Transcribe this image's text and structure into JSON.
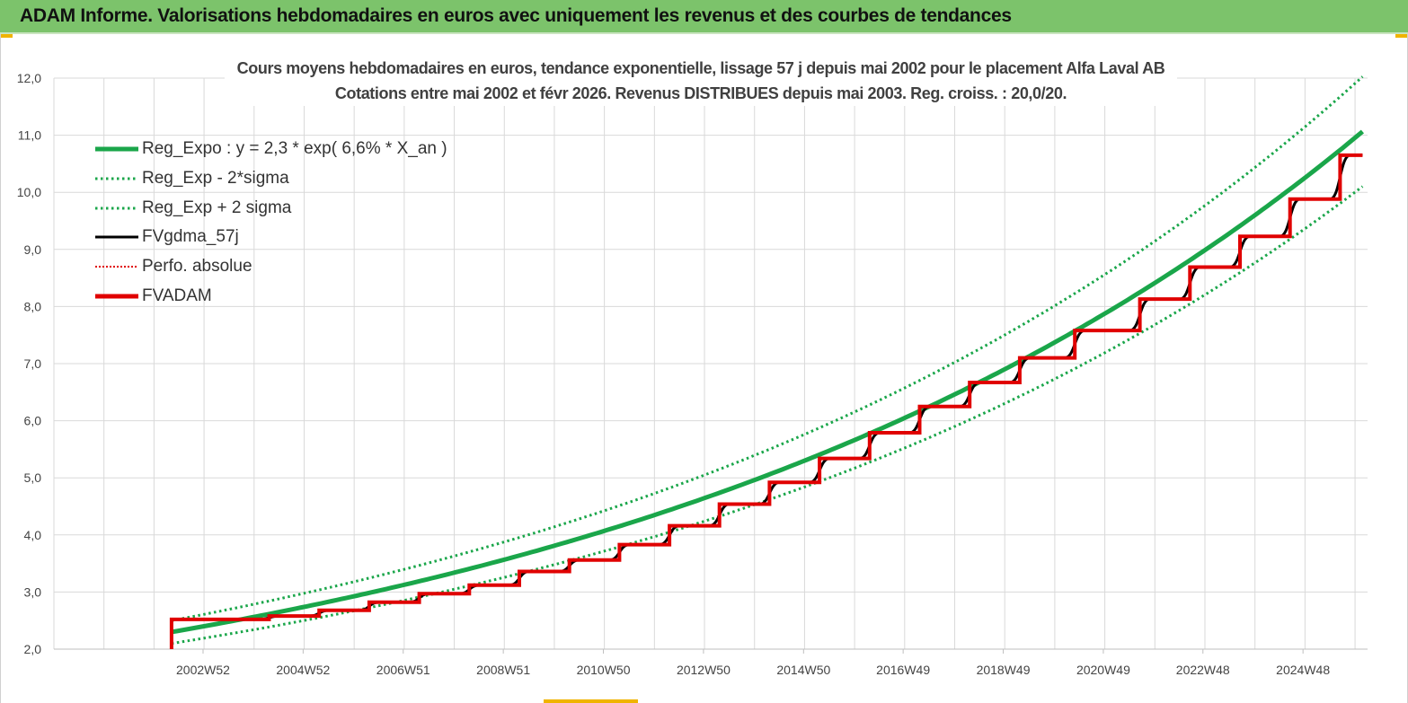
{
  "header": {
    "title": "ADAM Informe. Valorisations hebdomadaires en euros avec uniquement les revenus et des courbes de tendances"
  },
  "chart_data": {
    "type": "line",
    "title_line1": "Cours moyens hebdomadaires en euros, tendance exponentielle, lissage 57 j depuis mai 2002 pour le placement Alfa Laval AB",
    "title_line2": "Cotations entre mai 2002 et févr 2026. Revenus DISTRIBUES depuis mai 2003. Reg. croiss. : 20,0/20.",
    "ylim": [
      2.0,
      12.0
    ],
    "y_ticks": [
      "2,0",
      "3,0",
      "4,0",
      "5,0",
      "6,0",
      "7,0",
      "8,0",
      "9,0",
      "10,0",
      "11,0",
      "12,0"
    ],
    "y_tick_values": [
      2,
      3,
      4,
      5,
      6,
      7,
      8,
      9,
      10,
      11,
      12
    ],
    "x_ticks": [
      "2002W52",
      "2004W52",
      "2006W51",
      "2008W51",
      "2010W50",
      "2012W50",
      "2014W50",
      "2016W49",
      "2018W49",
      "2020W49",
      "2022W48",
      "2024W48"
    ],
    "x_tick_years": [
      2002.98,
      2004.98,
      2006.98,
      2008.98,
      2010.98,
      2012.98,
      2014.98,
      2016.97,
      2018.97,
      2020.97,
      2022.96,
      2024.96
    ],
    "xlim": [
      2000.0,
      2026.25
    ],
    "x_start": 2002.35,
    "x_end": 2026.15,
    "grid": true,
    "legend_position": "top-left",
    "colors": {
      "reg_expo": "#1aa64a",
      "sigma": "#1aa64a",
      "fvgdma": "#000000",
      "perfo": "#e00000",
      "fvadam": "#e00000",
      "grid": "#d9d9d9",
      "axis_text": "#444444"
    },
    "series": [
      {
        "name": "Reg_Expo : y = 2,3 * exp( 6,6% *  X_an )",
        "key": "reg_expo",
        "style": "solid-thick",
        "base": 2.3,
        "rate": 0.066
      },
      {
        "name": "Reg_Exp - 2*sigma",
        "key": "reg_minus",
        "style": "dotted",
        "base": 2.1,
        "rate": 0.066
      },
      {
        "name": "Reg_Exp + 2 sigma",
        "key": "reg_plus",
        "style": "dotted",
        "base": 2.5,
        "rate": 0.066
      },
      {
        "name": "FVgdma_57j",
        "key": "fvgdma",
        "style": "solid"
      },
      {
        "name": "Perfo. absolue",
        "key": "perfo",
        "style": "dotted-red"
      },
      {
        "name": "FVADAM",
        "key": "fvadam",
        "style": "step-thick",
        "steps": [
          {
            "x": 2002.35,
            "y": 2.52
          },
          {
            "x": 2004.3,
            "y": 2.58
          },
          {
            "x": 2005.3,
            "y": 2.68
          },
          {
            "x": 2006.3,
            "y": 2.82
          },
          {
            "x": 2007.3,
            "y": 2.97
          },
          {
            "x": 2008.3,
            "y": 3.12
          },
          {
            "x": 2009.3,
            "y": 3.36
          },
          {
            "x": 2010.3,
            "y": 3.56
          },
          {
            "x": 2011.3,
            "y": 3.83
          },
          {
            "x": 2012.3,
            "y": 4.16
          },
          {
            "x": 2013.3,
            "y": 4.54
          },
          {
            "x": 2014.3,
            "y": 4.92
          },
          {
            "x": 2015.3,
            "y": 5.34
          },
          {
            "x": 2016.3,
            "y": 5.79
          },
          {
            "x": 2017.3,
            "y": 6.25
          },
          {
            "x": 2018.3,
            "y": 6.67
          },
          {
            "x": 2019.3,
            "y": 7.1
          },
          {
            "x": 2020.4,
            "y": 7.58
          },
          {
            "x": 2021.7,
            "y": 8.13
          },
          {
            "x": 2022.7,
            "y": 8.69
          },
          {
            "x": 2023.7,
            "y": 9.23
          },
          {
            "x": 2024.7,
            "y": 9.88
          },
          {
            "x": 2025.7,
            "y": 10.65
          }
        ]
      }
    ]
  }
}
